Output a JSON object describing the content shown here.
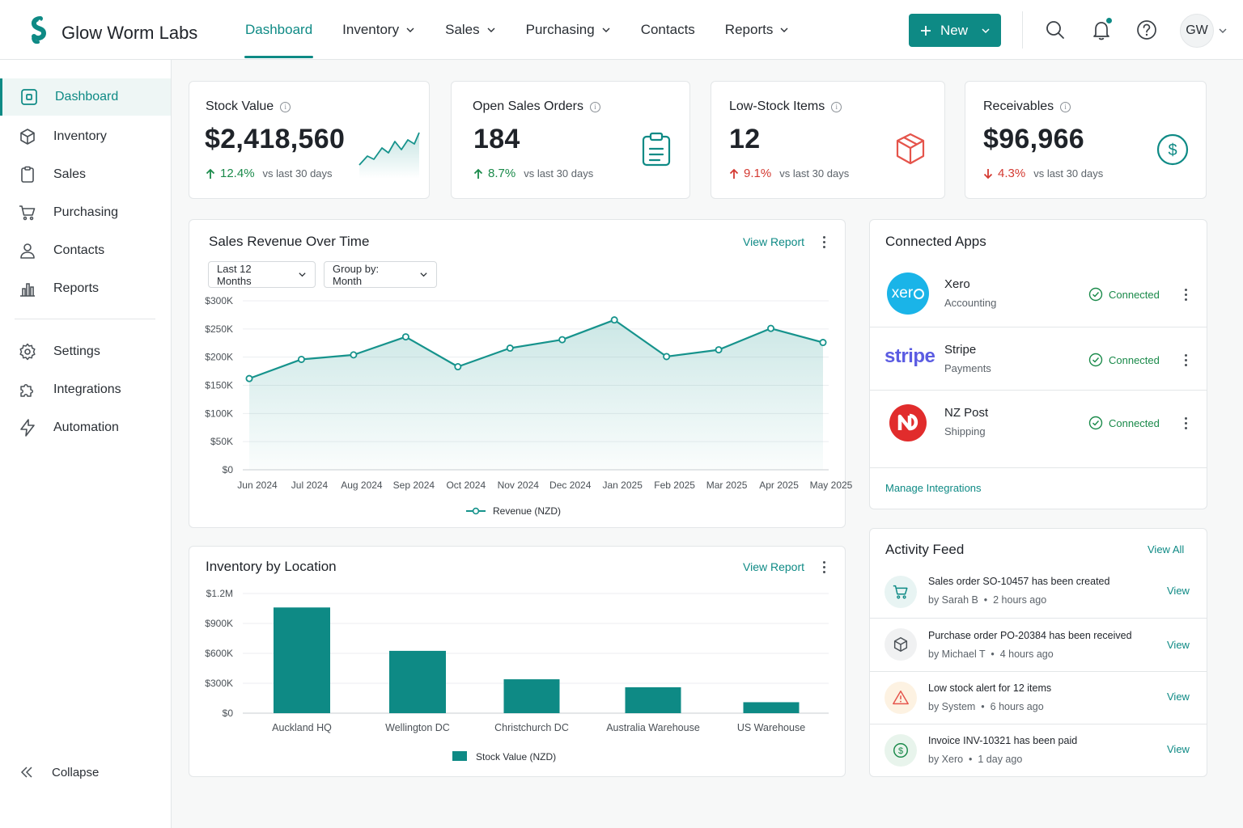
{
  "brand": {
    "name": "Glow Worm Labs",
    "logo_icon": "glow-worm-logo"
  },
  "nav": {
    "items": [
      {
        "label": "Dashboard",
        "active": true,
        "has_menu": false
      },
      {
        "label": "Inventory",
        "has_menu": true
      },
      {
        "label": "Sales",
        "has_menu": true
      },
      {
        "label": "Purchasing",
        "has_menu": true
      },
      {
        "label": "Contacts",
        "has_menu": false
      },
      {
        "label": "Reports",
        "has_menu": true
      }
    ],
    "new_button": "New",
    "avatar_initials": "GW"
  },
  "sidebar": {
    "items": [
      {
        "label": "Dashboard",
        "icon": "dashboard-icon",
        "active": true
      },
      {
        "label": "Inventory",
        "icon": "box-icon"
      },
      {
        "label": "Sales",
        "icon": "clipboard-icon"
      },
      {
        "label": "Purchasing",
        "icon": "cart-icon"
      },
      {
        "label": "Contacts",
        "icon": "user-icon"
      },
      {
        "label": "Reports",
        "icon": "bar-chart-icon"
      }
    ],
    "secondary": [
      {
        "label": "Settings",
        "icon": "gear-icon"
      },
      {
        "label": "Integrations",
        "icon": "puzzle-icon"
      },
      {
        "label": "Automation",
        "icon": "bolt-icon"
      }
    ],
    "collapse_label": "Collapse"
  },
  "kpis": [
    {
      "title": "Stock Value",
      "value": "$2,418,560",
      "delta": "12.4%",
      "direction": "up",
      "comparison": "vs last 30 days",
      "icon": "sparkline-icon"
    },
    {
      "title": "Open Sales Orders",
      "value": "184",
      "delta": "8.7%",
      "direction": "up",
      "comparison": "vs last 30 days",
      "icon": "clipboard-icon"
    },
    {
      "title": "Low-Stock Items",
      "value": "12",
      "delta": "9.1%",
      "direction": "up-bad",
      "comparison": "vs last 30 days",
      "icon": "box-icon"
    },
    {
      "title": "Receivables",
      "value": "$96,966",
      "delta": "4.3%",
      "direction": "down",
      "comparison": "vs last 30 days",
      "icon": "dollar-circle-icon"
    }
  ],
  "sales_panel": {
    "title": "Sales Revenue Over Time",
    "view_report": "View Report",
    "range_select": "Last 12 Months",
    "group_select": "Group by: Month"
  },
  "inventory_panel": {
    "title": "Inventory by Location",
    "view_report": "View Report"
  },
  "chart_data": [
    {
      "type": "area",
      "title": "Sales Revenue Over Time",
      "categories": [
        "Jun 2024",
        "Jul 2024",
        "Aug 2024",
        "Sep 2024",
        "Oct 2024",
        "Nov 2024",
        "Dec 2024",
        "Jan 2025",
        "Feb 2025",
        "Mar 2025",
        "Apr 2025",
        "May 2025"
      ],
      "series": [
        {
          "name": "Revenue (NZD)",
          "values": [
            162000,
            196000,
            204000,
            236000,
            183000,
            216000,
            231000,
            266000,
            201000,
            213000,
            251000,
            226000
          ]
        }
      ],
      "y_ticks": [
        "$0",
        "$50K",
        "$100K",
        "$150K",
        "$200K",
        "$250K",
        "$300K"
      ],
      "ylim": [
        0,
        300000
      ],
      "grid": true,
      "legend": "bottom",
      "color": "#16938c"
    },
    {
      "type": "bar",
      "title": "Inventory by Location",
      "categories": [
        "Auckland HQ",
        "Wellington DC",
        "Christchurch DC",
        "Australia Warehouse",
        "US Warehouse"
      ],
      "series": [
        {
          "name": "Stock Value (NZD)",
          "values": [
            1060000,
            625000,
            340000,
            260000,
            110000
          ]
        }
      ],
      "y_ticks": [
        "$0",
        "$300K",
        "$600K",
        "$900K",
        "$1.2M"
      ],
      "ylim": [
        0,
        1200000
      ],
      "grid": true,
      "legend": "bottom",
      "color": "#0e8a85"
    }
  ],
  "connected_apps": {
    "title": "Connected Apps",
    "apps": [
      {
        "name": "Xero",
        "category": "Accounting",
        "status": "Connected",
        "logo": "xero"
      },
      {
        "name": "Stripe",
        "category": "Payments",
        "status": "Connected",
        "logo": "stripe"
      },
      {
        "name": "NZ Post",
        "category": "Shipping",
        "status": "Connected",
        "logo": "nzpost"
      }
    ],
    "manage_link": "Manage Integrations"
  },
  "activity": {
    "title": "Activity Feed",
    "view_all": "View All",
    "items": [
      {
        "prefix": "Sales order ",
        "ref": "SO-10457",
        "suffix": " has been created",
        "by": "by Sarah B",
        "time": "2 hours ago",
        "icon": "cart-icon",
        "action": "View"
      },
      {
        "prefix": "Purchase order ",
        "ref": "PO-20384",
        "suffix": " has been received",
        "by": "by Michael T",
        "time": "4 hours ago",
        "icon": "box-icon",
        "action": "View"
      },
      {
        "prefix": "Low stock alert for 12 items",
        "ref": "",
        "suffix": "",
        "by": "by System",
        "time": "6 hours ago",
        "icon": "warning-icon",
        "action": "View"
      },
      {
        "prefix": "Invoice ",
        "ref": "INV-10321",
        "suffix": " has been paid",
        "by": "by Xero",
        "time": "1 day ago",
        "icon": "dollar-circle-icon",
        "action": "View"
      }
    ]
  },
  "colors": {
    "accent": "#0e8a85",
    "positive": "#1a8a4a",
    "negative": "#d43a32",
    "low_stock_icon": "#e5544b"
  }
}
